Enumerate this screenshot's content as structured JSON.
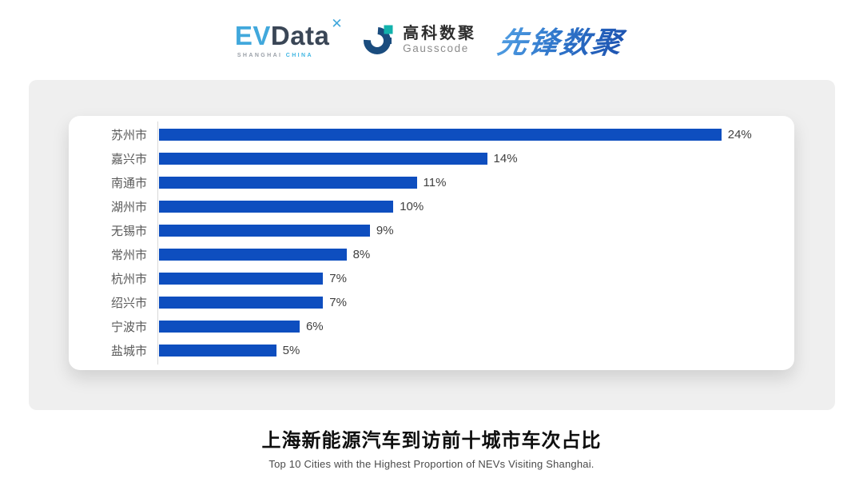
{
  "logos": {
    "evdata": {
      "ev": "EV",
      "data": "Data",
      "x_mark": "✕",
      "sub_left": "SHANGHAI",
      "sub_right": "CHINA"
    },
    "gausscode": {
      "cn": "高科数聚",
      "en": "Gausscode"
    },
    "xianfeng": {
      "text": "先锋数聚"
    }
  },
  "chart_data": {
    "type": "bar",
    "orientation": "horizontal",
    "title": "上海新能源汽车到访前十城市车次占比",
    "subtitle": "Top 10 Cities with the Highest Proportion of  NEVs Visiting Shanghai.",
    "categories": [
      "苏州市",
      "嘉兴市",
      "南通市",
      "湖州市",
      "无锡市",
      "常州市",
      "杭州市",
      "绍兴市",
      "宁波市",
      "盐城市"
    ],
    "values": [
      24,
      14,
      11,
      10,
      9,
      8,
      7,
      7,
      6,
      5
    ],
    "value_labels": [
      "24%",
      "14%",
      "11%",
      "10%",
      "9%",
      "8%",
      "7%",
      "7%",
      "6%",
      "5%"
    ],
    "xlabel": "",
    "ylabel": "",
    "xlim": [
      0,
      27
    ],
    "grid": false,
    "legend": false,
    "bar_color": "#0e4ebf"
  },
  "colors": {
    "bar_blue": "#0e4ebf",
    "panel_grey": "#efefef",
    "card_white": "#ffffff",
    "axis_line": "#d9d9d9",
    "label_text": "#595959",
    "value_text": "#404040",
    "evdata_cyan": "#41a8dc",
    "evdata_dark": "#3a4656",
    "gauss_navy": "#1a4c7e",
    "gauss_teal": "#12b2ac",
    "xianfeng_blue": "#2f76cb"
  }
}
